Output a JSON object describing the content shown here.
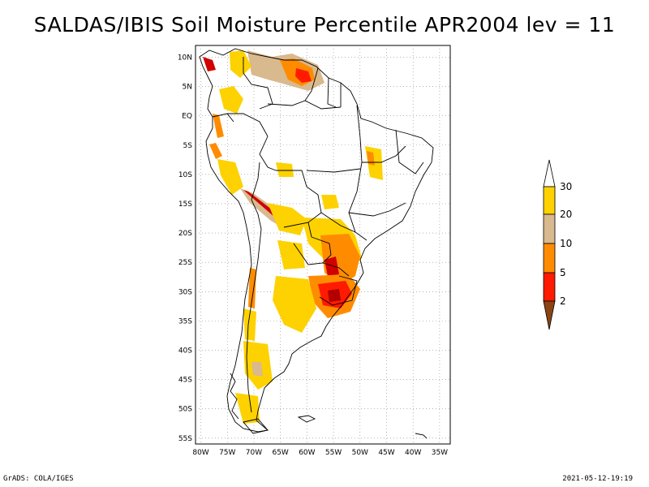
{
  "title": "SALDAS/IBIS Soil Moisture Percentile APR2004 lev = 11",
  "footer": {
    "left": "GrADS: COLA/IGES",
    "right": "2021-05-12-19:19"
  },
  "map": {
    "lat_labels": [
      "10N",
      "5N",
      "EQ",
      "5S",
      "10S",
      "15S",
      "20S",
      "25S",
      "30S",
      "35S",
      "40S",
      "45S",
      "50S",
      "55S"
    ],
    "lon_labels": [
      "80W",
      "75W",
      "70W",
      "65W",
      "60W",
      "55W",
      "50W",
      "45W",
      "40W",
      "35W"
    ],
    "lat_range": [
      -56,
      12
    ],
    "lon_range": [
      -81,
      -33
    ]
  },
  "legend": {
    "labels": [
      "30",
      "20",
      "10",
      "5",
      "2"
    ],
    "colors": {
      "above_30": "#ffffff",
      "20_30": "#fdd200",
      "10_20": "#d9b98e",
      "5_10": "#ff8c00",
      "2_5": "#ff1a00",
      "below_2": "#8b4513"
    }
  },
  "colors": {
    "coast": "#000000",
    "grid": "#888888",
    "percentile_yellow": "#fdd200",
    "percentile_tan": "#d9b98e",
    "percentile_orange": "#ff8c00",
    "percentile_red": "#ff1a00",
    "percentile_darkred": "#b00000"
  }
}
